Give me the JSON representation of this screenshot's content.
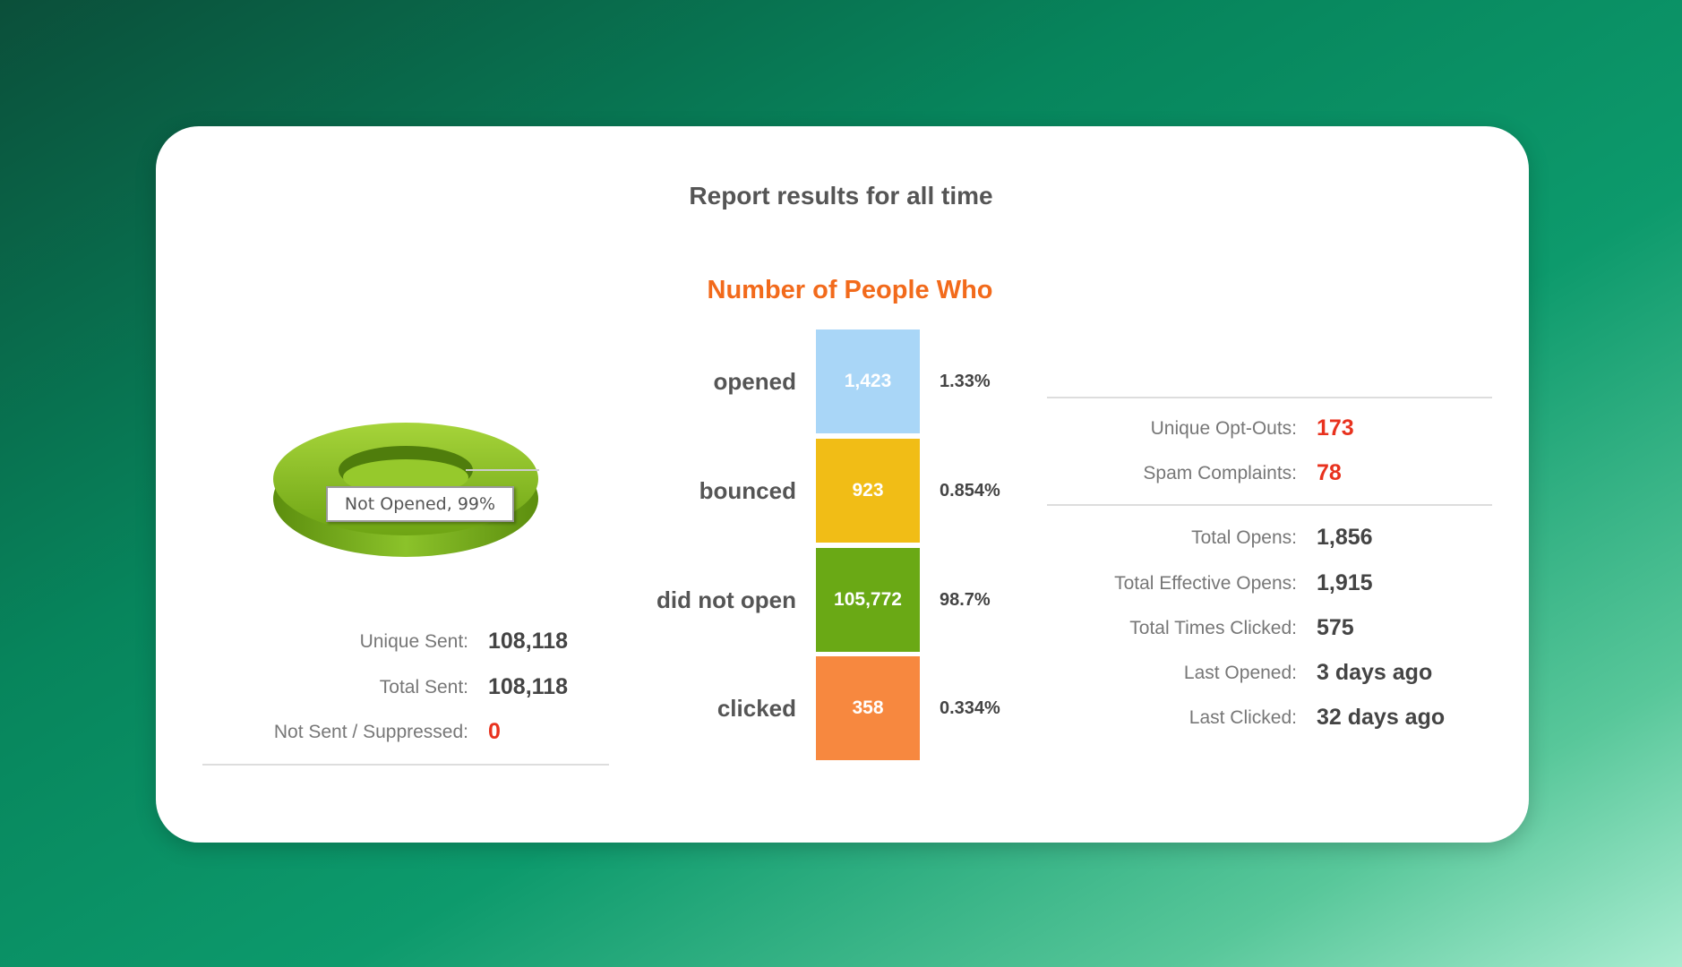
{
  "title": "Report results for all time",
  "donut": {
    "label": "Not Opened, 99%"
  },
  "funnel": {
    "title": "Number of People Who",
    "rows": [
      {
        "label": "opened",
        "value": "1,423",
        "percent": "1.33%",
        "color": "#a9d6f7"
      },
      {
        "label": "bounced",
        "value": "923",
        "percent": "0.854%",
        "color": "#f1bd16"
      },
      {
        "label": "did not open",
        "value": "105,772",
        "percent": "98.7%",
        "color": "#6aa915"
      },
      {
        "label": "clicked",
        "value": "358",
        "percent": "0.334%",
        "color": "#f7883f"
      }
    ]
  },
  "sent_stats": [
    {
      "label": "Unique Sent:",
      "value": "108,118"
    },
    {
      "label": "Total Sent:",
      "value": "108,118"
    },
    {
      "label": "Not Sent / Suppressed:",
      "value": "0",
      "color": "#e8321e"
    }
  ],
  "optout_stats": [
    {
      "label": "Unique Opt-Outs:",
      "value": "173",
      "color": "#e8321e"
    },
    {
      "label": "Spam Complaints:",
      "value": "78",
      "color": "#e8321e"
    }
  ],
  "open_stats": [
    {
      "label": "Total Opens:",
      "value": "1,856"
    },
    {
      "label": "Total Effective Opens:",
      "value": "1,915"
    },
    {
      "label": "Total Times Clicked:",
      "value": "575"
    },
    {
      "label": "Last Opened:",
      "value": "3 days ago"
    },
    {
      "label": "Last Clicked:",
      "value": "32 days ago"
    }
  ]
}
